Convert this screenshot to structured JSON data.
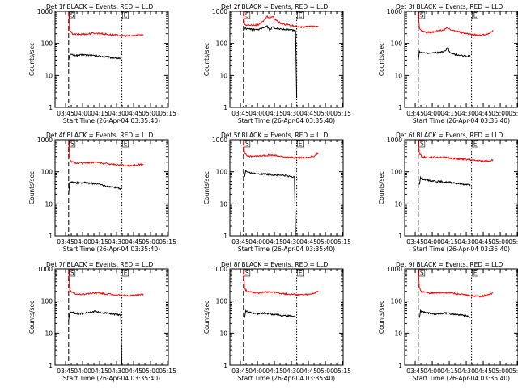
{
  "chart_data": [
    {
      "type": "line",
      "title": "Det 1f BLACK = Events, RED = LLD",
      "xlabel": "Start Time (26-Apr-04 03:35:40)",
      "ylabel": "Counts/sec",
      "yscale": "log",
      "ylim": [
        1,
        1000
      ],
      "yticks": [
        "1",
        "10",
        "100",
        "1000"
      ],
      "xticks": [
        "03:45",
        "04:00",
        "04:15",
        "04:30",
        "04:45",
        "05:00",
        "05:15"
      ],
      "xlim_min": [
        0,
        100
      ],
      "marker_labels": [
        "S",
        "E"
      ],
      "marker_times_min": [
        12,
        59
      ],
      "series": [
        {
          "color": "#000000",
          "x": [
            12,
            13,
            15,
            20,
            25,
            30,
            35,
            40,
            45,
            50,
            55,
            58
          ],
          "y": [
            30,
            45,
            44,
            42,
            44,
            43,
            41,
            40,
            38,
            36,
            35,
            33
          ]
        },
        {
          "color": "#ff0000",
          "x": [
            12,
            13,
            15,
            20,
            25,
            30,
            35,
            40,
            45,
            50,
            55,
            60,
            65,
            70,
            75,
            78
          ],
          "y": [
            950,
            250,
            200,
            190,
            195,
            200,
            210,
            205,
            195,
            185,
            180,
            178,
            170,
            175,
            185,
            190
          ]
        }
      ]
    },
    {
      "type": "line",
      "title": "Det 2f BLACK = Events, RED = LLD",
      "xlabel": "Start Time (26-Apr-04 03:35:40)",
      "ylabel": "Counts/sec",
      "yscale": "log",
      "ylim": [
        1,
        1000
      ],
      "yticks": [
        "1",
        "10",
        "100",
        "1000"
      ],
      "xticks": [
        "03:45",
        "04:00",
        "04:15",
        "04:30",
        "04:45",
        "05:00",
        "05:15"
      ],
      "xlim_min": [
        0,
        100
      ],
      "marker_labels": [
        "S",
        "E"
      ],
      "marker_times_min": [
        12,
        59
      ],
      "series": [
        {
          "color": "#000000",
          "x": [
            12,
            13,
            15,
            20,
            25,
            30,
            33,
            35,
            38,
            40,
            45,
            50,
            55,
            58,
            59
          ],
          "y": [
            200,
            300,
            280,
            270,
            265,
            300,
            340,
            260,
            330,
            300,
            280,
            270,
            260,
            250,
            2
          ]
        },
        {
          "color": "#ff0000",
          "x": [
            12,
            13,
            15,
            20,
            25,
            30,
            33,
            35,
            38,
            40,
            45,
            50,
            55,
            60,
            65,
            70,
            75,
            78
          ],
          "y": [
            950,
            400,
            370,
            360,
            380,
            520,
            680,
            620,
            700,
            550,
            420,
            380,
            360,
            330,
            320,
            330,
            340,
            350
          ]
        }
      ]
    },
    {
      "type": "line",
      "title": "Det 3f BLACK = Events, RED = LLD",
      "xlabel": "Start Time (26-Apr-04 03:35:40)",
      "ylabel": "Counts/sec",
      "yscale": "log",
      "ylim": [
        1,
        1000
      ],
      "yticks": [
        "1",
        "10",
        "100",
        "1000"
      ],
      "xticks": [
        "03:45",
        "04:00",
        "04:15",
        "04:30",
        "04:45",
        "05:00",
        "05:15"
      ],
      "xlim_min": [
        0,
        100
      ],
      "marker_labels": [
        "S",
        "E"
      ],
      "marker_times_min": [
        12,
        59
      ],
      "series": [
        {
          "color": "#000000",
          "x": [
            12,
            13,
            15,
            20,
            25,
            30,
            35,
            38,
            40,
            45,
            50,
            55,
            58
          ],
          "y": [
            30,
            55,
            52,
            48,
            50,
            52,
            55,
            75,
            50,
            45,
            42,
            40,
            40
          ]
        },
        {
          "color": "#ff0000",
          "x": [
            12,
            13,
            15,
            20,
            25,
            30,
            35,
            38,
            40,
            45,
            50,
            55,
            60,
            65,
            70,
            75,
            78
          ],
          "y": [
            950,
            300,
            250,
            220,
            230,
            250,
            270,
            300,
            260,
            240,
            220,
            200,
            190,
            180,
            185,
            200,
            260
          ]
        }
      ]
    },
    {
      "type": "line",
      "title": "Det 4f BLACK = Events, RED = LLD",
      "xlabel": "Start Time (26-Apr-04 03:35:40)",
      "ylabel": "Counts/sec",
      "yscale": "log",
      "ylim": [
        1,
        1000
      ],
      "yticks": [
        "1",
        "10",
        "100",
        "1000"
      ],
      "xticks": [
        "03:45",
        "04:00",
        "04:15",
        "04:30",
        "04:45",
        "05:00",
        "05:15"
      ],
      "xlim_min": [
        0,
        100
      ],
      "marker_labels": [
        "S",
        "E"
      ],
      "marker_times_min": [
        12,
        59
      ],
      "series": [
        {
          "color": "#000000",
          "x": [
            12,
            13,
            15,
            20,
            25,
            30,
            35,
            40,
            45,
            50,
            55,
            58
          ],
          "y": [
            20,
            50,
            48,
            45,
            46,
            44,
            43,
            40,
            36,
            34,
            32,
            30
          ]
        },
        {
          "color": "#ff0000",
          "x": [
            12,
            13,
            15,
            20,
            25,
            30,
            35,
            40,
            45,
            50,
            55,
            60,
            65,
            70,
            75,
            78
          ],
          "y": [
            950,
            250,
            200,
            185,
            190,
            195,
            200,
            190,
            180,
            170,
            165,
            160,
            155,
            160,
            170,
            175
          ]
        }
      ]
    },
    {
      "type": "line",
      "title": "Det 5f BLACK = Events, RED = LLD",
      "xlabel": "Start Time (26-Apr-04 03:35:40)",
      "ylabel": "Counts/sec",
      "yscale": "log",
      "ylim": [
        1,
        1000
      ],
      "yticks": [
        "1",
        "10",
        "100",
        "1000"
      ],
      "xticks": [
        "03:45",
        "04:00",
        "04:15",
        "04:30",
        "04:45",
        "05:00",
        "05:15"
      ],
      "xlim_min": [
        0,
        100
      ],
      "marker_labels": [
        "S",
        "E"
      ],
      "marker_times_min": [
        12,
        59
      ],
      "series": [
        {
          "color": "#000000",
          "x": [
            13,
            14,
            16,
            20,
            25,
            30,
            35,
            40,
            45,
            50,
            55,
            57,
            58
          ],
          "y": [
            70,
            110,
            95,
            90,
            88,
            85,
            82,
            80,
            78,
            75,
            70,
            68,
            1
          ]
        },
        {
          "color": "#ff0000",
          "x": [
            12,
            13,
            15,
            20,
            25,
            30,
            35,
            40,
            45,
            50,
            55,
            60,
            65,
            70,
            75,
            78
          ],
          "y": [
            950,
            400,
            320,
            300,
            310,
            320,
            330,
            320,
            300,
            290,
            280,
            275,
            270,
            280,
            320,
            400
          ]
        }
      ]
    },
    {
      "type": "line",
      "title": "Det 6f BLACK = Events, RED = LLD",
      "xlabel": "Start Time (26-Apr-04 03:35:40)",
      "ylabel": "Counts/sec",
      "yscale": "log",
      "ylim": [
        1,
        1000
      ],
      "yticks": [
        "1",
        "10",
        "100",
        "1000"
      ],
      "xticks": [
        "03:45",
        "04:00",
        "04:15",
        "04:30",
        "04:45",
        "05:00",
        "05:15"
      ],
      "xlim_min": [
        0,
        100
      ],
      "marker_labels": [
        "S",
        "E"
      ],
      "marker_times_min": [
        12,
        59
      ],
      "series": [
        {
          "color": "#000000",
          "x": [
            13,
            14,
            16,
            20,
            25,
            30,
            35,
            40,
            45,
            50,
            55,
            58
          ],
          "y": [
            40,
            65,
            60,
            55,
            52,
            50,
            48,
            47,
            45,
            42,
            40,
            38
          ]
        },
        {
          "color": "#ff0000",
          "x": [
            12,
            13,
            15,
            20,
            25,
            30,
            35,
            40,
            45,
            50,
            55,
            60,
            65,
            70,
            75,
            78
          ],
          "y": [
            950,
            380,
            300,
            280,
            285,
            290,
            280,
            270,
            260,
            250,
            245,
            230,
            220,
            215,
            220,
            240
          ]
        }
      ]
    },
    {
      "type": "line",
      "title": "Det 7f BLACK = Events, RED = LLD",
      "xlabel": "Start Time (26-Apr-04 03:35:40)",
      "ylabel": "Counts/sec",
      "yscale": "log",
      "ylim": [
        1,
        1000
      ],
      "yticks": [
        "1",
        "10",
        "100",
        "1000"
      ],
      "xticks": [
        "03:45",
        "04:00",
        "04:15",
        "04:30",
        "04:45",
        "05:00",
        "05:15"
      ],
      "xlim_min": [
        0,
        100
      ],
      "marker_labels": [
        "S",
        "E"
      ],
      "marker_times_min": [
        12,
        59
      ],
      "series": [
        {
          "color": "#000000",
          "x": [
            12,
            13,
            15,
            20,
            25,
            30,
            35,
            40,
            45,
            50,
            55,
            58,
            59
          ],
          "y": [
            25,
            45,
            44,
            40,
            42,
            45,
            48,
            44,
            42,
            40,
            38,
            36,
            1
          ]
        },
        {
          "color": "#ff0000",
          "x": [
            12,
            13,
            15,
            20,
            25,
            30,
            35,
            40,
            45,
            50,
            55,
            60,
            65,
            70,
            75,
            78
          ],
          "y": [
            950,
            220,
            180,
            160,
            165,
            170,
            180,
            175,
            165,
            160,
            155,
            150,
            145,
            150,
            160,
            165
          ]
        }
      ]
    },
    {
      "type": "line",
      "title": "Det 8f BLACK = Events, RED = LLD",
      "xlabel": "Start Time (26-Apr-04 03:35:40)",
      "ylabel": "Counts/sec",
      "yscale": "log",
      "ylim": [
        1,
        1000
      ],
      "yticks": [
        "1",
        "10",
        "100",
        "1000"
      ],
      "xticks": [
        "03:45",
        "04:00",
        "04:15",
        "04:30",
        "04:45",
        "05:00",
        "05:15"
      ],
      "xlim_min": [
        0,
        100
      ],
      "marker_labels": [
        "S",
        "E"
      ],
      "marker_times_min": [
        12,
        59
      ],
      "series": [
        {
          "color": "#000000",
          "x": [
            13,
            14,
            16,
            20,
            25,
            30,
            35,
            40,
            45,
            50,
            55,
            58
          ],
          "y": [
            30,
            50,
            45,
            42,
            40,
            42,
            40,
            38,
            36,
            35,
            34,
            32
          ]
        },
        {
          "color": "#ff0000",
          "x": [
            12,
            13,
            15,
            20,
            25,
            30,
            35,
            40,
            45,
            50,
            55,
            60,
            65,
            70,
            75,
            78
          ],
          "y": [
            950,
            250,
            200,
            185,
            180,
            190,
            195,
            185,
            175,
            165,
            160,
            158,
            155,
            160,
            175,
            210
          ]
        }
      ]
    },
    {
      "type": "line",
      "title": "Det 9f BLACK = Events, RED = LLD",
      "xlabel": "Start Time (26-Apr-04 03:35:40)",
      "ylabel": "Counts/sec",
      "yscale": "log",
      "ylim": [
        1,
        1000
      ],
      "yticks": [
        "1",
        "10",
        "100",
        "1000"
      ],
      "xticks": [
        "03:45",
        "04:00",
        "04:15",
        "04:30",
        "04:45",
        "05:00",
        "05:15"
      ],
      "xlim_min": [
        0,
        100
      ],
      "marker_labels": [
        "S",
        "E"
      ],
      "marker_times_min": [
        12,
        59
      ],
      "series": [
        {
          "color": "#000000",
          "x": [
            13,
            14,
            16,
            20,
            25,
            30,
            35,
            40,
            45,
            50,
            55,
            58
          ],
          "y": [
            30,
            48,
            45,
            42,
            40,
            40,
            42,
            40,
            38,
            36,
            34,
            30
          ]
        },
        {
          "color": "#ff0000",
          "x": [
            12,
            13,
            15,
            20,
            25,
            30,
            35,
            40,
            45,
            50,
            55,
            60,
            65,
            70,
            75,
            78
          ],
          "y": [
            950,
            250,
            200,
            180,
            175,
            180,
            185,
            180,
            170,
            160,
            150,
            145,
            140,
            145,
            160,
            180
          ]
        }
      ]
    }
  ]
}
